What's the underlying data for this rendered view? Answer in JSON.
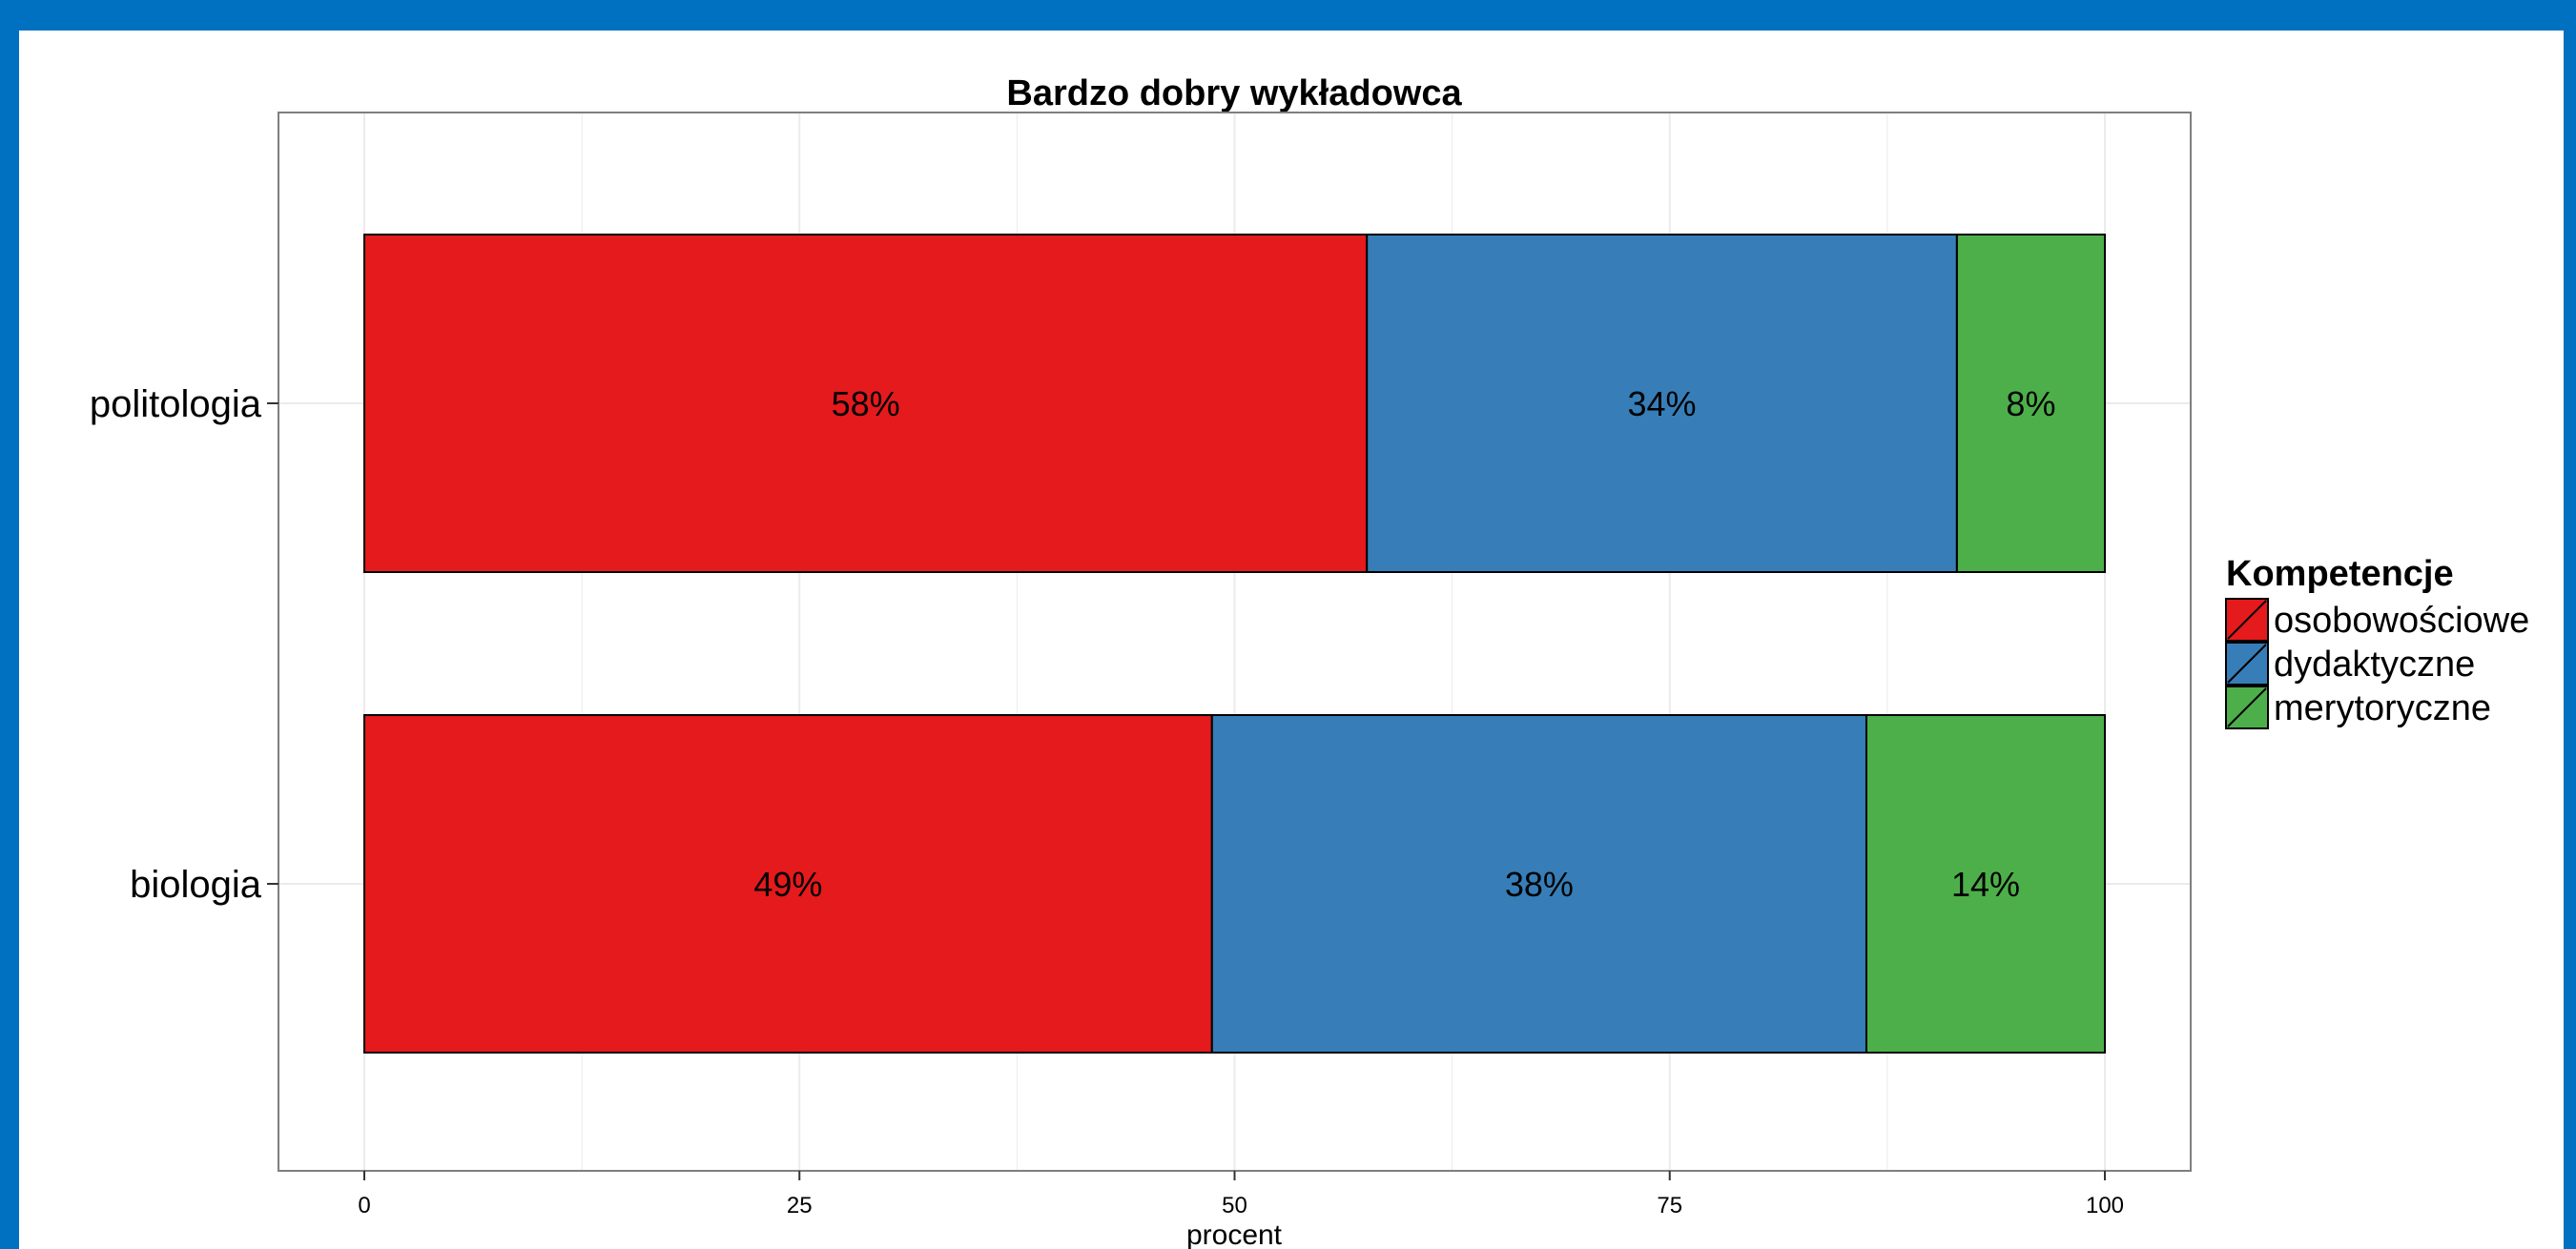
{
  "colors": {
    "frame": "#0070C0",
    "panel_border": "#7f7f7f",
    "grid": "#ebebeb",
    "bar_outline": "#000000"
  },
  "chart_data": {
    "type": "bar",
    "orientation": "horizontal",
    "stacked": true,
    "title": "Bardzo dobry wykładowca",
    "xlabel": "procent",
    "ylabel": "",
    "xlim": [
      0,
      100
    ],
    "x_ticks": [
      "0",
      "25",
      "50",
      "75",
      "100"
    ],
    "grid": true,
    "legend_position": "right",
    "legend_title": "Kompetencje",
    "categories": [
      "politologia",
      "biologia"
    ],
    "series": [
      {
        "name": "osobowościowe",
        "color": "#E41A1C",
        "values": [
          57.6,
          48.7
        ],
        "labels": [
          "58%",
          "49%"
        ]
      },
      {
        "name": "dydaktyczne",
        "color": "#377EB8",
        "values": [
          33.9,
          37.6
        ],
        "labels": [
          "34%",
          "38%"
        ]
      },
      {
        "name": "merytoryczne",
        "color": "#4DAF4A",
        "values": [
          8.5,
          13.7
        ],
        "labels": [
          "8%",
          "14%"
        ]
      }
    ]
  }
}
